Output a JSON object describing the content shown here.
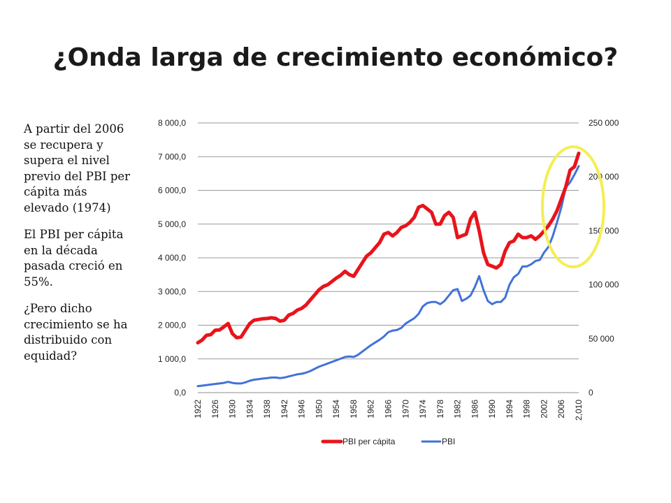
{
  "slide": {
    "title": "¿Onda larga de crecimiento económico?",
    "paragraphs": [
      "A partir del 2006 se recupera y supera el nivel previo del PBI per cápita más elevado (1974)",
      "El PBI per cápita en la década pasada creció en 55%.",
      "¿Pero dicho crecimiento se ha distribuido con equidad?"
    ]
  },
  "chart_data": {
    "type": "line",
    "title": "",
    "xlabel": "",
    "legend_position": "bottom",
    "grid": true,
    "highlight_color": "#f4ee54",
    "x_tick_labels": [
      "1922",
      "1926",
      "1930",
      "1934",
      "1938",
      "1942",
      "1946",
      "1950",
      "1954",
      "1958",
      "1962",
      "1966",
      "1970",
      "1974",
      "1978",
      "1982",
      "1986",
      "1990",
      "1994",
      "1998",
      "2002",
      "2006",
      "2,010"
    ],
    "y_left": {
      "ylim": [
        0,
        8000
      ],
      "ticks": [
        "0,0",
        "1 000,0",
        "2 000,0",
        "3 000,0",
        "4 000,0",
        "5 000,0",
        "6 000,0",
        "7 000,0",
        "8 000,0"
      ]
    },
    "y_right": {
      "ylim": [
        0,
        250000
      ],
      "ticks": [
        "0",
        "50 000",
        "100 000",
        "150 000",
        "200 000",
        "250 000"
      ]
    },
    "series": [
      {
        "name": "PBI per cápita",
        "axis": "left",
        "color": "#e8141b",
        "x": [
          1922,
          1923,
          1924,
          1925,
          1926,
          1927,
          1928,
          1929,
          1930,
          1931,
          1932,
          1933,
          1934,
          1935,
          1936,
          1937,
          1938,
          1939,
          1940,
          1941,
          1942,
          1943,
          1944,
          1945,
          1946,
          1947,
          1948,
          1949,
          1950,
          1951,
          1952,
          1953,
          1954,
          1955,
          1956,
          1957,
          1958,
          1959,
          1960,
          1961,
          1962,
          1963,
          1964,
          1965,
          1966,
          1967,
          1968,
          1969,
          1970,
          1971,
          1972,
          1973,
          1974,
          1975,
          1976,
          1977,
          1978,
          1979,
          1980,
          1981,
          1982,
          1983,
          1984,
          1985,
          1986,
          1987,
          1988,
          1989,
          1990,
          1991,
          1992,
          1993,
          1994,
          1995,
          1996,
          1997,
          1998,
          1999,
          2000,
          2001,
          2002,
          2003,
          2004,
          2005,
          2006,
          2007,
          2008,
          2009,
          2010
        ],
        "values": [
          1480,
          1560,
          1700,
          1720,
          1850,
          1860,
          1950,
          2050,
          1750,
          1630,
          1650,
          1850,
          2050,
          2150,
          2170,
          2190,
          2200,
          2220,
          2200,
          2120,
          2150,
          2300,
          2350,
          2450,
          2500,
          2600,
          2750,
          2900,
          3050,
          3150,
          3200,
          3300,
          3400,
          3480,
          3600,
          3500,
          3450,
          3650,
          3850,
          4050,
          4150,
          4300,
          4450,
          4700,
          4750,
          4650,
          4750,
          4900,
          4950,
          5050,
          5200,
          5500,
          5550,
          5450,
          5350,
          5000,
          5000,
          5250,
          5350,
          5200,
          4600,
          4650,
          4700,
          5150,
          5350,
          4800,
          4150,
          3800,
          3750,
          3700,
          3800,
          4200,
          4450,
          4500,
          4700,
          4600,
          4600,
          4650,
          4550,
          4650,
          4800,
          4950,
          5150,
          5400,
          5750,
          6100,
          6600,
          6700,
          7100
        ]
      },
      {
        "name": "PBI",
        "axis": "right",
        "color": "#4272d8",
        "x": [
          1922,
          1923,
          1924,
          1925,
          1926,
          1927,
          1928,
          1929,
          1930,
          1931,
          1932,
          1933,
          1934,
          1935,
          1936,
          1937,
          1938,
          1939,
          1940,
          1941,
          1942,
          1943,
          1944,
          1945,
          1946,
          1947,
          1948,
          1949,
          1950,
          1951,
          1952,
          1953,
          1954,
          1955,
          1956,
          1957,
          1958,
          1959,
          1960,
          1961,
          1962,
          1963,
          1964,
          1965,
          1966,
          1967,
          1968,
          1969,
          1970,
          1971,
          1972,
          1973,
          1974,
          1975,
          1976,
          1977,
          1978,
          1979,
          1980,
          1981,
          1982,
          1983,
          1984,
          1985,
          1986,
          1987,
          1988,
          1989,
          1990,
          1991,
          1992,
          1993,
          1994,
          1995,
          1996,
          1997,
          1998,
          1999,
          2000,
          2001,
          2002,
          2003,
          2004,
          2005,
          2006,
          2007,
          2008,
          2009,
          2010
        ],
        "values": [
          6000,
          6500,
          7000,
          7500,
          8000,
          8500,
          9000,
          10000,
          9000,
          8500,
          8500,
          9500,
          11000,
          12000,
          12500,
          13000,
          13500,
          14000,
          14000,
          13500,
          14000,
          15000,
          16000,
          17000,
          17500,
          18500,
          20000,
          22000,
          24000,
          25500,
          27000,
          28500,
          30000,
          31500,
          33000,
          33500,
          33000,
          35000,
          38000,
          41000,
          44000,
          46500,
          49000,
          52000,
          56000,
          57500,
          58000,
          60000,
          64000,
          66500,
          69000,
          73000,
          80000,
          83000,
          84000,
          84000,
          82000,
          85000,
          90000,
          95000,
          96000,
          85000,
          87000,
          90000,
          98000,
          108000,
          95000,
          85000,
          82000,
          84000,
          84000,
          88000,
          100000,
          107000,
          110000,
          117000,
          117000,
          119000,
          122000,
          123000,
          130000,
          135000,
          145000,
          158000,
          172000,
          190000,
          195000,
          202000,
          210000
        ]
      }
    ]
  }
}
